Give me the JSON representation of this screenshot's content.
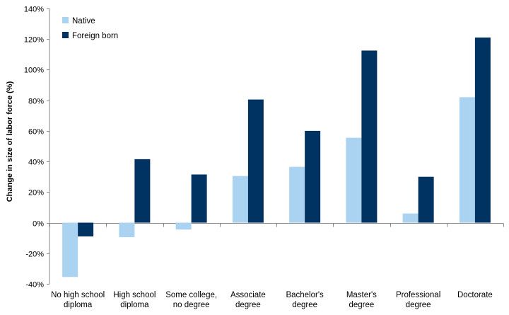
{
  "chart_data": {
    "type": "bar",
    "title": "",
    "xlabel": "",
    "ylabel": "Change in size of labor force (%)",
    "ylim": [
      -40,
      140
    ],
    "y_ticks": [
      "-40%",
      "-20%",
      "0%",
      "20%",
      "40%",
      "60%",
      "80%",
      "100%",
      "120%",
      "140%"
    ],
    "y_tick_values": [
      -40,
      -20,
      0,
      20,
      40,
      60,
      80,
      100,
      120,
      140
    ],
    "categories": [
      [
        "No high school",
        "diploma"
      ],
      [
        "High school",
        "diploma"
      ],
      [
        "Some college,",
        "no degree"
      ],
      [
        "Associate",
        "degree"
      ],
      [
        "Bachelor's",
        "degree"
      ],
      [
        "Master's",
        "degree"
      ],
      [
        "Professional",
        "degree"
      ],
      [
        "Doctorate"
      ]
    ],
    "series": [
      {
        "name": "Native",
        "color": "#a9d3f0",
        "values": [
          -35.5,
          -9.5,
          -4.5,
          30.5,
          36.5,
          55.5,
          6,
          82
        ]
      },
      {
        "name": "Foreign born",
        "color": "#003262",
        "values": [
          -9,
          41.5,
          31.5,
          80.5,
          60,
          112.5,
          30,
          121
        ]
      }
    ],
    "legend_position": "top-left",
    "grid": false
  }
}
